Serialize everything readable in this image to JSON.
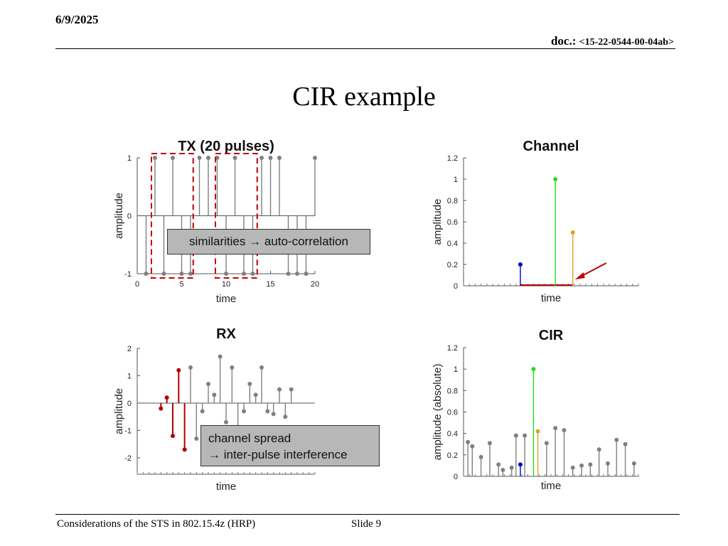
{
  "header": {
    "date": "6/9/2025",
    "doc_label": "doc.:",
    "doc_id": "<15-22-0544-00-04ab>"
  },
  "slide_title": "CIR example",
  "footer": {
    "left": "Considerations of the STS in 802.15.4z (HRP)",
    "slide": "Slide 9"
  },
  "callouts": {
    "similarity": "similarities → auto-correlation",
    "spread_line1": "channel spread",
    "spread_line2": "→ inter-pulse interference"
  },
  "chart_data": [
    {
      "type": "stem",
      "title": "TX (20 pulses)",
      "xlabel": "time",
      "ylabel": "amplitude",
      "xlim": [
        0,
        20
      ],
      "ylim": [
        -1,
        1
      ],
      "xticks": [
        0,
        5,
        10,
        15,
        20
      ],
      "yticks": [
        -1,
        0,
        1
      ],
      "x": [
        1,
        2,
        3,
        4,
        5,
        6,
        7,
        8,
        9,
        10,
        11,
        12,
        13,
        14,
        15,
        16,
        17,
        18,
        19,
        20
      ],
      "values": [
        -1,
        1,
        -1,
        1,
        -1,
        -1,
        1,
        1,
        1,
        -1,
        1,
        -1,
        -1,
        1,
        1,
        1,
        -1,
        -1,
        -1,
        1
      ],
      "color": "#808080",
      "highlight_boxes_x": [
        [
          1.6,
          6.3
        ],
        [
          8.8,
          13.5
        ]
      ],
      "highlight_color": "#c00000"
    },
    {
      "type": "stem",
      "title": "Channel",
      "xlabel": "time",
      "ylabel": "amplitude",
      "xlim": [
        0,
        40
      ],
      "ylim": [
        0,
        1.2
      ],
      "yticks": [
        0,
        0.2,
        0.4,
        0.6,
        0.8,
        1,
        1.2
      ],
      "ytick_labels": [
        "0",
        "0.2",
        "0.4",
        "0.6",
        "0.8",
        "1",
        "1.2"
      ],
      "x": [
        13,
        21,
        25
      ],
      "values": [
        0.2,
        1,
        0.5
      ],
      "colors": [
        "#0000cc",
        "#22dd22",
        "#e0a020"
      ],
      "baseline_segment": {
        "x": [
          13,
          25
        ],
        "color": "#c00000"
      },
      "annotation_arrow_color": "#c00000"
    },
    {
      "type": "stem",
      "title": "RX",
      "xlabel": "time",
      "ylabel": "amplitude",
      "xlim": [
        0,
        30
      ],
      "ylim": [
        -2.6,
        2
      ],
      "yticks": [
        -2,
        -1,
        0,
        1,
        2
      ],
      "x": [
        4,
        5,
        6,
        7,
        8,
        9,
        10,
        11,
        12,
        13,
        14,
        15,
        16,
        17,
        18,
        19,
        20,
        21,
        22,
        23,
        24,
        25
      ],
      "values": [
        -0.2,
        0.2,
        -1.2,
        1.2,
        -1.7,
        1.3,
        -1.3,
        -0.3,
        0.7,
        0.3,
        1.7,
        -0.7,
        1.3,
        -1.8,
        -0.3,
        0.7,
        0.3,
        1.3,
        -0.3,
        -0.4,
        0.5,
        -0.5
      ],
      "colors": [
        "#b00000",
        "#b00000",
        "#b00000",
        "#b00000",
        "#b00000",
        "#808080",
        "#808080",
        "#808080",
        "#808080",
        "#808080",
        "#808080",
        "#808080",
        "#808080",
        "#808080",
        "#808080",
        "#808080",
        "#808080",
        "#808080",
        "#808080",
        "#808080",
        "#808080",
        "#808080"
      ],
      "extra_points": [
        {
          "x": 26,
          "y": 0.5
        }
      ]
    },
    {
      "type": "stem",
      "title": "CIR",
      "xlabel": "time",
      "ylabel": "amplitude (absolute)",
      "xlim": [
        0,
        40
      ],
      "ylim": [
        0,
        1.2
      ],
      "yticks": [
        0,
        0.2,
        0.4,
        0.6,
        0.8,
        1,
        1.2
      ],
      "ytick_labels": [
        "0",
        "0.2",
        "0.4",
        "0.6",
        "0.8",
        "1",
        "1.2"
      ],
      "x": [
        1,
        2,
        4,
        6,
        8,
        9,
        11,
        12,
        13,
        14,
        16,
        17,
        19,
        21,
        23,
        25,
        27,
        29,
        31,
        33,
        35,
        37,
        39
      ],
      "values": [
        0.32,
        0.28,
        0.18,
        0.31,
        0.11,
        0.06,
        0.08,
        0.38,
        0.11,
        0.38,
        1,
        0.42,
        0.31,
        0.45,
        0.43,
        0.08,
        0.1,
        0.11,
        0.25,
        0.12,
        0.34,
        0.3,
        0.12
      ],
      "colors": [
        "#808080",
        "#808080",
        "#808080",
        "#808080",
        "#808080",
        "#808080",
        "#808080",
        "#808080",
        "#0000cc",
        "#808080",
        "#22dd22",
        "#e0a020",
        "#808080",
        "#808080",
        "#808080",
        "#808080",
        "#808080",
        "#808080",
        "#808080",
        "#808080",
        "#808080",
        "#808080",
        "#808080"
      ]
    }
  ]
}
